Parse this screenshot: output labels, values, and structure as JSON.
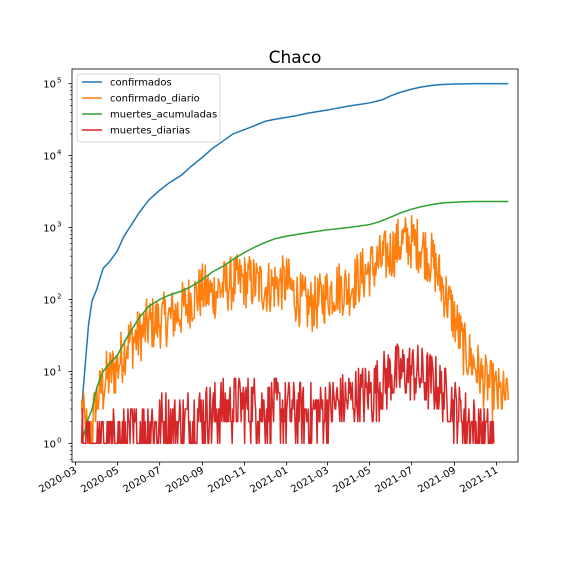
{
  "chart_data": {
    "type": "line",
    "title": "Chaco",
    "xlabel": "",
    "ylabel": "",
    "yscale": "log",
    "ylim": [
      0.55,
      160000
    ],
    "xlim": [
      "2020-02-25",
      "2021-12-02"
    ],
    "x_tick_labels": [
      "2020-03",
      "2020-05",
      "2020-07",
      "2020-09",
      "2020-11",
      "2021-01",
      "2021-03",
      "2021-05",
      "2021-07",
      "2021-09",
      "2021-11"
    ],
    "y_tick_labels": [
      {
        "value": 1,
        "label": "10",
        "exp": "0"
      },
      {
        "value": 10,
        "label": "10",
        "exp": "1"
      },
      {
        "value": 100,
        "label": "10",
        "exp": "2"
      },
      {
        "value": 1000,
        "label": "10",
        "exp": "3"
      },
      {
        "value": 10000,
        "label": "10",
        "exp": "4"
      },
      {
        "value": 100000,
        "label": "10",
        "exp": "5"
      }
    ],
    "grid": false,
    "legend_position": "top-left",
    "series": [
      {
        "name": "confirmados",
        "color": "#1f77b4",
        "x": [
          "2020-03-10",
          "2020-03-15",
          "2020-03-20",
          "2020-03-25",
          "2020-04-01",
          "2020-04-10",
          "2020-04-20",
          "2020-05-01",
          "2020-05-10",
          "2020-05-20",
          "2020-06-01",
          "2020-06-15",
          "2020-07-01",
          "2020-07-15",
          "2020-08-01",
          "2020-08-15",
          "2020-09-01",
          "2020-09-15",
          "2020-10-01",
          "2020-10-15",
          "2020-11-01",
          "2020-11-15",
          "2020-12-01",
          "2020-12-15",
          "2021-01-01",
          "2021-01-15",
          "2021-02-01",
          "2021-03-01",
          "2021-04-01",
          "2021-05-01",
          "2021-05-20",
          "2021-06-01",
          "2021-06-15",
          "2021-07-01",
          "2021-07-15",
          "2021-08-01",
          "2021-08-15",
          "2021-09-01",
          "2021-09-15",
          "2021-10-01",
          "2021-10-15",
          "2021-11-01",
          "2021-11-18"
        ],
        "values": [
          3,
          12,
          45,
          95,
          140,
          270,
          340,
          480,
          750,
          1050,
          1600,
          2400,
          3300,
          4200,
          5300,
          7000,
          9500,
          12500,
          16000,
          20000,
          23000,
          26000,
          30000,
          32000,
          34000,
          36000,
          39000,
          43000,
          49000,
          54000,
          60000,
          68000,
          76000,
          84000,
          90000,
          95000,
          97500,
          99000,
          99500,
          100000,
          100000,
          100000,
          100000
        ]
      },
      {
        "name": "confirmado_diario",
        "color": "#ff7f0e",
        "x_start": "2020-03-10",
        "x_end": "2021-11-18",
        "anchors": [
          [
            "2020-03-10",
            3
          ],
          [
            "2020-03-20",
            1
          ],
          [
            "2020-04-01",
            4
          ],
          [
            "2020-04-15",
            8
          ],
          [
            "2020-05-01",
            12
          ],
          [
            "2020-05-15",
            25
          ],
          [
            "2020-06-01",
            30
          ],
          [
            "2020-06-15",
            45
          ],
          [
            "2020-07-01",
            50
          ],
          [
            "2020-07-15",
            55
          ],
          [
            "2020-08-01",
            70
          ],
          [
            "2020-08-15",
            100
          ],
          [
            "2020-09-01",
            130
          ],
          [
            "2020-09-15",
            120
          ],
          [
            "2020-10-01",
            150
          ],
          [
            "2020-10-15",
            170
          ],
          [
            "2020-11-01",
            180
          ],
          [
            "2020-11-15",
            170
          ],
          [
            "2020-12-01",
            150
          ],
          [
            "2020-12-15",
            160
          ],
          [
            "2021-01-01",
            170
          ],
          [
            "2021-01-15",
            110
          ],
          [
            "2021-02-01",
            80
          ],
          [
            "2021-02-15",
            90
          ],
          [
            "2021-03-01",
            120
          ],
          [
            "2021-03-15",
            150
          ],
          [
            "2021-04-01",
            140
          ],
          [
            "2021-04-15",
            200
          ],
          [
            "2021-05-01",
            260
          ],
          [
            "2021-05-15",
            330
          ],
          [
            "2021-06-01",
            450
          ],
          [
            "2021-06-15",
            620
          ],
          [
            "2021-07-01",
            640
          ],
          [
            "2021-07-15",
            550
          ],
          [
            "2021-08-01",
            330
          ],
          [
            "2021-08-15",
            150
          ],
          [
            "2021-09-01",
            55
          ],
          [
            "2021-09-15",
            20
          ],
          [
            "2021-10-01",
            12
          ],
          [
            "2021-10-15",
            7
          ],
          [
            "2021-11-01",
            5
          ],
          [
            "2021-11-18",
            4
          ]
        ]
      },
      {
        "name": "muertes_acumuladas",
        "color": "#2ca02c",
        "x": [
          "2020-03-10",
          "2020-03-18",
          "2020-03-25",
          "2020-04-01",
          "2020-04-10",
          "2020-04-20",
          "2020-05-01",
          "2020-05-15",
          "2020-06-01",
          "2020-06-15",
          "2020-07-01",
          "2020-07-15",
          "2020-08-01",
          "2020-08-15",
          "2020-09-01",
          "2020-09-15",
          "2020-10-01",
          "2020-10-15",
          "2020-11-01",
          "2020-11-15",
          "2020-12-01",
          "2020-12-15",
          "2021-01-01",
          "2021-02-01",
          "2021-03-01",
          "2021-04-01",
          "2021-05-01",
          "2021-05-15",
          "2021-06-01",
          "2021-06-15",
          "2021-07-01",
          "2021-07-15",
          "2021-08-01",
          "2021-08-15",
          "2021-09-01",
          "2021-09-15",
          "2021-10-01",
          "2021-10-15",
          "2021-11-01",
          "2021-11-18"
        ],
        "values": [
          1,
          2,
          3,
          6,
          10,
          13,
          17,
          30,
          55,
          80,
          100,
          115,
          130,
          150,
          190,
          240,
          290,
          360,
          450,
          530,
          620,
          700,
          760,
          850,
          930,
          1000,
          1100,
          1200,
          1400,
          1600,
          1800,
          1950,
          2100,
          2200,
          2250,
          2280,
          2300,
          2300,
          2300,
          2300
        ]
      },
      {
        "name": "muertes_diarias",
        "color": "#d62728",
        "x_start": "2020-03-10",
        "x_end": "2021-10-28",
        "anchors": [
          [
            "2020-03-10",
            1
          ],
          [
            "2020-04-01",
            1
          ],
          [
            "2020-05-01",
            1
          ],
          [
            "2020-06-01",
            1.5
          ],
          [
            "2020-07-01",
            2
          ],
          [
            "2020-08-01",
            2
          ],
          [
            "2020-09-01",
            2.5
          ],
          [
            "2020-10-01",
            3
          ],
          [
            "2020-11-01",
            3.5
          ],
          [
            "2020-12-01",
            3
          ],
          [
            "2021-01-01",
            3
          ],
          [
            "2021-02-01",
            2.5
          ],
          [
            "2021-03-01",
            3
          ],
          [
            "2021-04-01",
            4
          ],
          [
            "2021-05-01",
            5
          ],
          [
            "2021-06-01",
            9
          ],
          [
            "2021-07-01",
            10
          ],
          [
            "2021-08-01",
            7
          ],
          [
            "2021-09-01",
            3
          ],
          [
            "2021-10-01",
            1.5
          ],
          [
            "2021-10-28",
            1
          ]
        ]
      }
    ]
  }
}
